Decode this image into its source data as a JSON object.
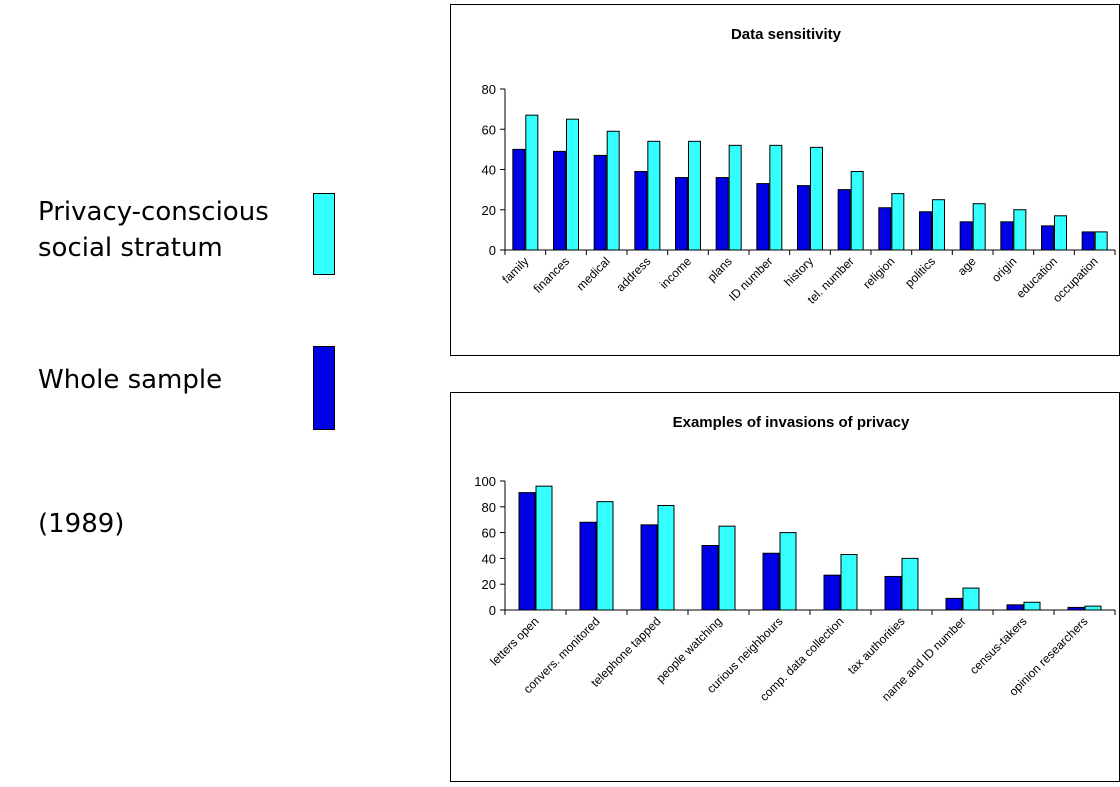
{
  "legend": {
    "items": [
      {
        "label_line1": "Privacy-conscious",
        "label_line2": "social stratum",
        "color": "#33ffff"
      },
      {
        "label": "Whole sample",
        "color": "#0000e6"
      }
    ],
    "year": "(1989)"
  },
  "chart_data": [
    {
      "type": "bar",
      "title": "Data sensitivity",
      "xlabel": "",
      "ylabel": "",
      "ylim": [
        0,
        80
      ],
      "yticks": [
        0,
        20,
        40,
        60,
        80
      ],
      "categories": [
        "family",
        "finances",
        "medical",
        "address",
        "income",
        "plans",
        "ID number",
        "history",
        "tel. number",
        "religion",
        "politics",
        "age",
        "origin",
        "education",
        "occupation"
      ],
      "series": [
        {
          "key": "whole",
          "color": "#0000e6",
          "values": [
            50,
            49,
            47,
            39,
            36,
            36,
            33,
            32,
            30,
            21,
            19,
            14,
            14,
            12,
            9
          ]
        },
        {
          "key": "conscious",
          "color": "#33ffff",
          "values": [
            67,
            65,
            59,
            54,
            54,
            52,
            52,
            51,
            39,
            28,
            25,
            23,
            20,
            17,
            9
          ]
        }
      ],
      "grid": false,
      "legend": "none"
    },
    {
      "type": "bar",
      "title": "Examples of invasions of privacy",
      "xlabel": "",
      "ylabel": "",
      "ylim": [
        0,
        100
      ],
      "yticks": [
        0,
        20,
        40,
        60,
        80,
        100
      ],
      "categories": [
        "letters open",
        "convers. monitored",
        "telephone tapped",
        "people watching",
        "curious neighbours",
        "comp. data collection",
        "tax authorities",
        "name and ID number",
        "census-takers",
        "opinion researchers"
      ],
      "series": [
        {
          "key": "whole",
          "color": "#0000e6",
          "values": [
            91,
            68,
            66,
            50,
            44,
            27,
            26,
            9,
            4,
            2
          ]
        },
        {
          "key": "conscious",
          "color": "#33ffff",
          "values": [
            96,
            84,
            81,
            65,
            60,
            43,
            40,
            17,
            6,
            3
          ]
        }
      ],
      "grid": false,
      "legend": "none"
    }
  ]
}
